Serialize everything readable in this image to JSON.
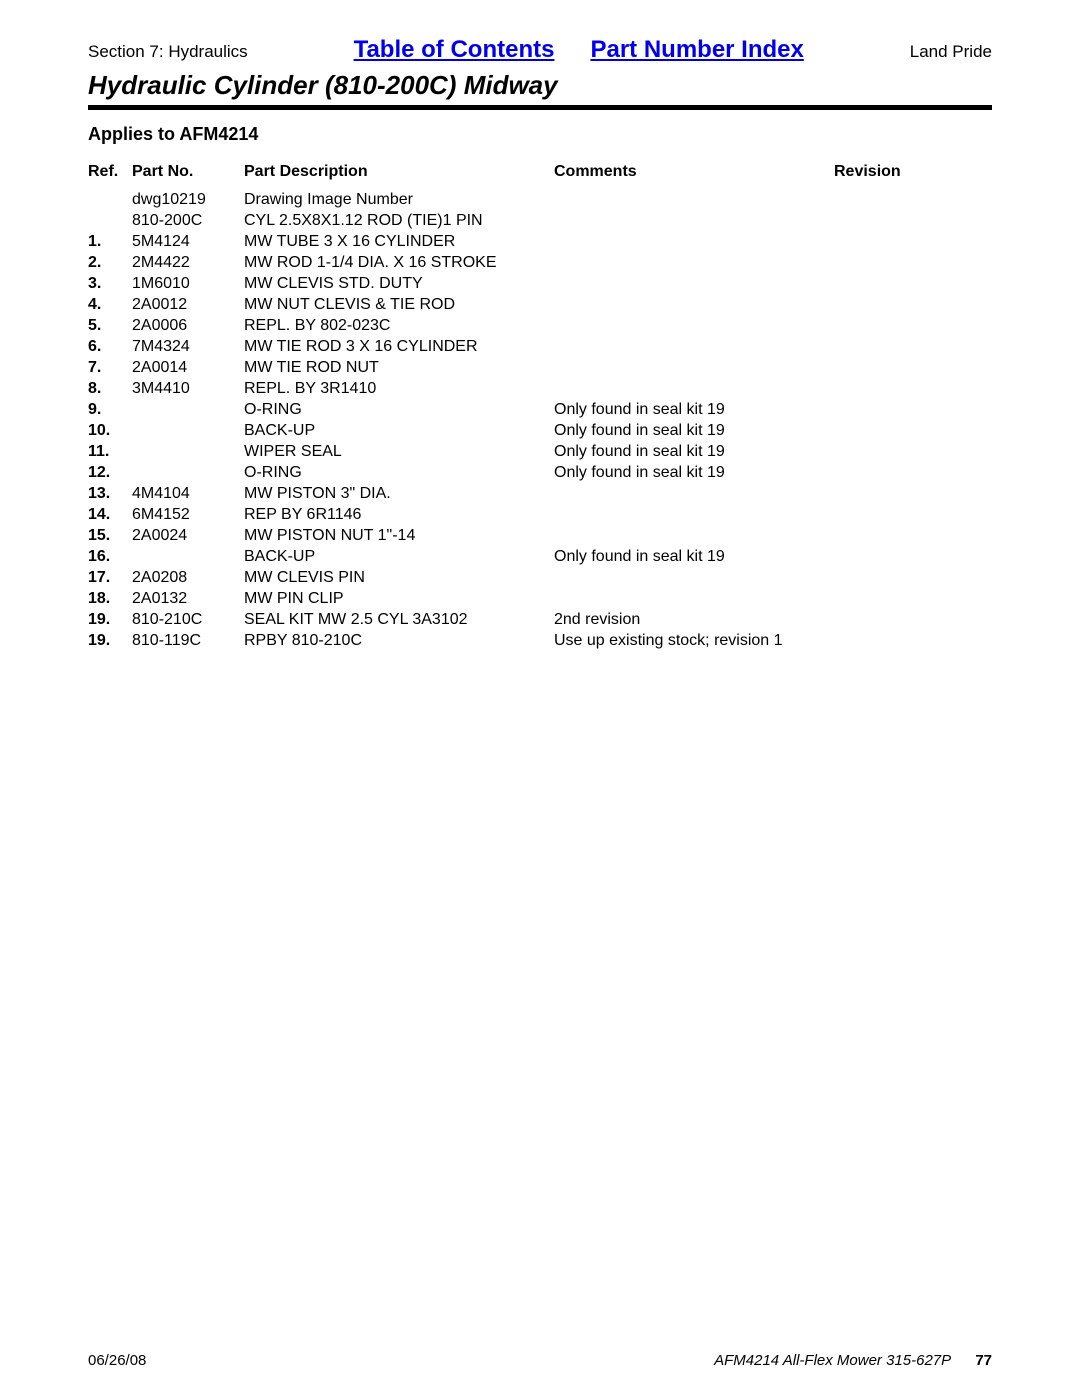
{
  "header": {
    "section_label": "Section 7: Hydraulics",
    "toc_link": "Table of Contents",
    "pni_link": "Part Number Index",
    "brand": "Land Pride",
    "title": "Hydraulic Cylinder (810-200C) Midway"
  },
  "applies_to": "Applies to AFM4214",
  "columns": {
    "ref": "Ref.",
    "part_no": "Part No.",
    "desc": "Part Description",
    "comments": "Comments",
    "revision": "Revision"
  },
  "rows": [
    {
      "ref": "",
      "part": "dwg10219",
      "desc": "Drawing Image Number",
      "comm": "",
      "rev": ""
    },
    {
      "ref": "",
      "part": "810-200C",
      "desc": "CYL 2.5X8X1.12 ROD (TIE)1 PIN",
      "comm": "",
      "rev": ""
    },
    {
      "ref": "1.",
      "part": "5M4124",
      "desc": "MW TUBE 3 X 16 CYLINDER",
      "comm": "",
      "rev": ""
    },
    {
      "ref": "2.",
      "part": "2M4422",
      "desc": "MW ROD 1-1/4 DIA. X 16 STROKE",
      "comm": "",
      "rev": ""
    },
    {
      "ref": "3.",
      "part": "1M6010",
      "desc": "MW CLEVIS STD. DUTY",
      "comm": "",
      "rev": ""
    },
    {
      "ref": "4.",
      "part": "2A0012",
      "desc": "MW NUT CLEVIS & TIE ROD",
      "comm": "",
      "rev": ""
    },
    {
      "ref": "5.",
      "part": "2A0006",
      "desc": "REPL. BY 802-023C",
      "comm": "",
      "rev": ""
    },
    {
      "ref": "6.",
      "part": "7M4324",
      "desc": "MW TIE ROD 3 X 16 CYLINDER",
      "comm": "",
      "rev": ""
    },
    {
      "ref": "7.",
      "part": "2A0014",
      "desc": "MW TIE ROD NUT",
      "comm": "",
      "rev": ""
    },
    {
      "ref": "8.",
      "part": "3M4410",
      "desc": "REPL. BY 3R1410",
      "comm": "",
      "rev": ""
    },
    {
      "ref": "9.",
      "part": "",
      "desc": "O-RING",
      "comm": "Only found in seal kit 19",
      "rev": ""
    },
    {
      "ref": "10.",
      "part": "",
      "desc": "BACK-UP",
      "comm": "Only found in seal kit 19",
      "rev": ""
    },
    {
      "ref": "11.",
      "part": "",
      "desc": "WIPER SEAL",
      "comm": "Only found in seal kit 19",
      "rev": ""
    },
    {
      "ref": "12.",
      "part": "",
      "desc": "O-RING",
      "comm": "Only found in seal kit 19",
      "rev": ""
    },
    {
      "ref": "13.",
      "part": "4M4104",
      "desc": "MW PISTON 3\" DIA.",
      "comm": "",
      "rev": ""
    },
    {
      "ref": "14.",
      "part": "6M4152",
      "desc": "REP BY 6R1146",
      "comm": "",
      "rev": ""
    },
    {
      "ref": "15.",
      "part": "2A0024",
      "desc": "MW PISTON NUT 1\"-14",
      "comm": "",
      "rev": ""
    },
    {
      "ref": "16.",
      "part": "",
      "desc": "BACK-UP",
      "comm": "Only found in seal kit 19",
      "rev": ""
    },
    {
      "ref": "17.",
      "part": "2A0208",
      "desc": "MW CLEVIS PIN",
      "comm": "",
      "rev": ""
    },
    {
      "ref": "18.",
      "part": "2A0132",
      "desc": "MW PIN CLIP",
      "comm": "",
      "rev": ""
    },
    {
      "ref": "19.",
      "part": "810-210C",
      "desc": "SEAL KIT MW 2.5 CYL 3A3102",
      "comm": "2nd revision",
      "rev": ""
    },
    {
      "ref": "19.",
      "part": "810-119C",
      "desc": "RPBY 810-210C",
      "comm": "Use up existing stock; revision 1",
      "rev": ""
    }
  ],
  "footer": {
    "date": "06/26/08",
    "manual": "AFM4214 All-Flex Mower 315-627P",
    "page": "77"
  }
}
